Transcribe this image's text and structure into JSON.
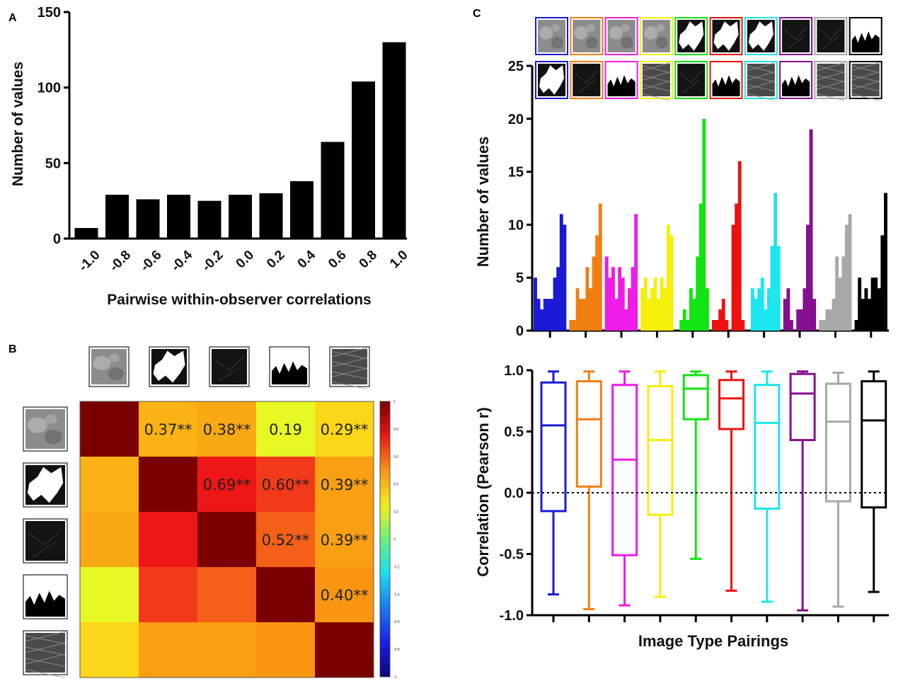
{
  "panel_labels": [
    "A",
    "B",
    "C"
  ],
  "colors": {
    "blue": "#1a1ad6",
    "orange": "#f07f12",
    "magenta": "#ee1ce6",
    "yellow": "#f5ef0a",
    "green": "#13e413",
    "red": "#ee1111",
    "cyan": "#1ce6ee",
    "purple": "#850f8f",
    "gray": "#a8a8a8",
    "black": "#000000"
  },
  "chart_data": [
    {
      "id": "A",
      "type": "bar",
      "title": "",
      "xlabel": "Pairwise within-observer correlations",
      "ylabel": "Number of values",
      "categories": [
        "-1.0",
        "-0.8",
        "-0.6",
        "-0.4",
        "-0.2",
        "0.0",
        "0.2",
        "0.4",
        "0.6",
        "0.8",
        "1.0"
      ],
      "values": [
        7,
        29,
        26,
        29,
        25,
        29,
        30,
        38,
        64,
        104,
        130
      ],
      "ylim": [
        0,
        150
      ],
      "yticks": [
        "0",
        "50",
        "100",
        "150"
      ],
      "grid": false
    },
    {
      "id": "B",
      "type": "heatmap",
      "row_icons": [
        "noise-texture-thumbnail",
        "white-blob-thumbnail",
        "dark-texture-thumbnail",
        "mountain-silhouette-thumbnail",
        "fibrous-texture-thumbnail"
      ],
      "col_icons": [
        "noise-texture-thumbnail",
        "white-blob-thumbnail",
        "dark-texture-thumbnail",
        "mountain-silhouette-thumbnail",
        "fibrous-texture-thumbnail"
      ],
      "matrix": [
        [
          1.0,
          0.37,
          0.38,
          0.19,
          0.29
        ],
        [
          0.37,
          1.0,
          0.69,
          0.6,
          0.39
        ],
        [
          0.38,
          0.69,
          1.0,
          0.52,
          0.39
        ],
        [
          0.19,
          0.6,
          0.52,
          1.0,
          0.4
        ],
        [
          0.29,
          0.39,
          0.39,
          0.4,
          1.0
        ]
      ],
      "annotations": [
        {
          "row": 0,
          "col": 1,
          "text": "0.37**"
        },
        {
          "row": 0,
          "col": 2,
          "text": "0.38**"
        },
        {
          "row": 0,
          "col": 3,
          "text": "0.19"
        },
        {
          "row": 0,
          "col": 4,
          "text": "0.29**"
        },
        {
          "row": 1,
          "col": 2,
          "text": "0.69**"
        },
        {
          "row": 1,
          "col": 3,
          "text": "0.60**"
        },
        {
          "row": 1,
          "col": 4,
          "text": "0.39**"
        },
        {
          "row": 2,
          "col": 3,
          "text": "0.52**"
        },
        {
          "row": 2,
          "col": 4,
          "text": "0.39**"
        },
        {
          "row": 3,
          "col": 4,
          "text": "0.40**"
        }
      ],
      "colorbar": {
        "range": [
          -1,
          1
        ],
        "ticks": [
          "1",
          "0.8",
          "0.6",
          "0.4",
          "0.2",
          "0",
          "-0.2",
          "-0.4",
          "-0.6",
          "-0.8",
          "-1"
        ]
      }
    },
    {
      "id": "C-top",
      "type": "bar",
      "title": "",
      "xlabel": "",
      "ylabel": "Number of values",
      "ylim": [
        0,
        25
      ],
      "yticks": [
        "0",
        "5",
        "10",
        "15",
        "20",
        "25"
      ],
      "pairing_thumbnails": [
        {
          "color": "blue",
          "top": "noise",
          "bottom": "blob"
        },
        {
          "color": "orange",
          "top": "noise",
          "bottom": "dark"
        },
        {
          "color": "magenta",
          "top": "noise",
          "bottom": "mountain"
        },
        {
          "color": "yellow",
          "top": "noise",
          "bottom": "fibrous"
        },
        {
          "color": "green",
          "top": "blob",
          "bottom": "dark"
        },
        {
          "color": "red",
          "top": "blob",
          "bottom": "mountain"
        },
        {
          "color": "cyan",
          "top": "blob",
          "bottom": "fibrous"
        },
        {
          "color": "purple",
          "top": "dark",
          "bottom": "mountain"
        },
        {
          "color": "gray",
          "top": "dark",
          "bottom": "fibrous"
        },
        {
          "color": "black",
          "top": "mountain",
          "bottom": "fibrous"
        }
      ],
      "series": [
        {
          "name": "blue",
          "values": [
            5,
            3,
            2,
            3,
            3,
            3,
            5,
            6,
            11,
            10
          ]
        },
        {
          "name": "orange",
          "values": [
            1,
            1,
            4,
            3,
            3,
            6,
            4,
            7,
            9,
            12
          ]
        },
        {
          "name": "magenta",
          "values": [
            7,
            5,
            6,
            3,
            6,
            5,
            2,
            4,
            6,
            11
          ]
        },
        {
          "name": "yellow",
          "values": [
            4,
            5,
            3,
            4,
            5,
            3,
            5,
            4,
            10,
            9
          ]
        },
        {
          "name": "green",
          "values": [
            0,
            1,
            2,
            1,
            4,
            3,
            7,
            12,
            20,
            4
          ]
        },
        {
          "name": "red",
          "values": [
            1,
            1,
            2,
            3,
            1,
            0,
            10,
            12,
            16,
            1
          ]
        },
        {
          "name": "cyan",
          "values": [
            0,
            4,
            3,
            4,
            5,
            2,
            4,
            8,
            13,
            8
          ]
        },
        {
          "name": "purple",
          "values": [
            3,
            4,
            1,
            0,
            2,
            2,
            4,
            10,
            19,
            3
          ]
        },
        {
          "name": "gray",
          "values": [
            1,
            1,
            2,
            2,
            3,
            7,
            5,
            7,
            10,
            11
          ]
        },
        {
          "name": "black",
          "values": [
            1,
            5,
            3,
            4,
            3,
            5,
            5,
            4,
            9,
            13
          ]
        }
      ]
    },
    {
      "id": "C-bottom",
      "type": "box",
      "xlabel": "Image Type Pairings",
      "ylabel": "Correlation (Pearson r)",
      "ylim": [
        -1.0,
        1.0
      ],
      "yticks": [
        "-1.0",
        "-0.5",
        "0.0",
        "0.5",
        "1.0"
      ],
      "reference_line": 0.0,
      "boxes": [
        {
          "name": "blue",
          "min": -0.83,
          "q1": -0.15,
          "median": 0.55,
          "q3": 0.9,
          "max": 0.99
        },
        {
          "name": "orange",
          "min": -0.95,
          "q1": 0.05,
          "median": 0.6,
          "q3": 0.91,
          "max": 0.99
        },
        {
          "name": "magenta",
          "min": -0.92,
          "q1": -0.51,
          "median": 0.27,
          "q3": 0.88,
          "max": 0.99
        },
        {
          "name": "yellow",
          "min": -0.85,
          "q1": -0.18,
          "median": 0.43,
          "q3": 0.87,
          "max": 0.99
        },
        {
          "name": "green",
          "min": -0.54,
          "q1": 0.6,
          "median": 0.85,
          "q3": 0.96,
          "max": 0.99
        },
        {
          "name": "red",
          "min": -0.8,
          "q1": 0.52,
          "median": 0.77,
          "q3": 0.92,
          "max": 0.99
        },
        {
          "name": "cyan",
          "min": -0.89,
          "q1": -0.13,
          "median": 0.57,
          "q3": 0.88,
          "max": 0.99
        },
        {
          "name": "purple",
          "min": -0.96,
          "q1": 0.43,
          "median": 0.81,
          "q3": 0.97,
          "max": 0.99
        },
        {
          "name": "gray",
          "min": -0.93,
          "q1": -0.07,
          "median": 0.58,
          "q3": 0.89,
          "max": 0.98
        },
        {
          "name": "black",
          "min": -0.81,
          "q1": -0.12,
          "median": 0.59,
          "q3": 0.91,
          "max": 0.99
        }
      ]
    }
  ]
}
